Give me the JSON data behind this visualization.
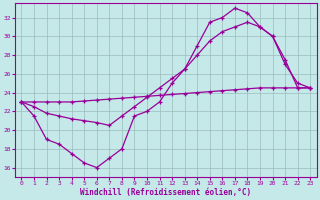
{
  "xlabel": "Windchill (Refroidissement éolien,°C)",
  "bg_color": "#c5e8e8",
  "grid_color": "#9bbcbc",
  "line_color": "#990099",
  "xlim": [
    -0.5,
    23.5
  ],
  "ylim": [
    15.0,
    33.5
  ],
  "yticks": [
    16,
    18,
    20,
    22,
    24,
    26,
    28,
    30,
    32
  ],
  "xticks": [
    0,
    1,
    2,
    3,
    4,
    5,
    6,
    7,
    8,
    9,
    10,
    11,
    12,
    13,
    14,
    15,
    16,
    17,
    18,
    19,
    20,
    21,
    22,
    23
  ],
  "line1_x": [
    0,
    1,
    2,
    3,
    4,
    5,
    6,
    7,
    8,
    9,
    10,
    11,
    12,
    13,
    14,
    15,
    16,
    17,
    18,
    19,
    20,
    21,
    22,
    23
  ],
  "line1_y": [
    23.0,
    23.0,
    23.0,
    23.0,
    23.0,
    23.1,
    23.2,
    23.3,
    23.4,
    23.5,
    23.6,
    23.7,
    23.8,
    23.9,
    24.0,
    24.1,
    24.2,
    24.3,
    24.4,
    24.5,
    24.5,
    24.5,
    24.5,
    24.5
  ],
  "line2_x": [
    0,
    1,
    2,
    3,
    4,
    5,
    6,
    7,
    8,
    9,
    10,
    11,
    12,
    13,
    14,
    15,
    16,
    17,
    18,
    19,
    20,
    21,
    22,
    23
  ],
  "line2_y": [
    23.0,
    22.5,
    21.8,
    21.5,
    21.2,
    21.0,
    20.8,
    20.5,
    21.5,
    22.5,
    23.5,
    24.5,
    25.5,
    26.5,
    28.0,
    29.5,
    30.5,
    31.0,
    31.5,
    31.0,
    30.0,
    27.0,
    25.0,
    24.5
  ],
  "line3_x": [
    0,
    1,
    2,
    3,
    4,
    5,
    6,
    7,
    8,
    9,
    10,
    11,
    12,
    13,
    14,
    15,
    16,
    17,
    18,
    19,
    20,
    21,
    22,
    23
  ],
  "line3_y": [
    23.0,
    21.5,
    19.0,
    18.5,
    17.5,
    16.5,
    16.0,
    17.0,
    18.0,
    21.5,
    22.0,
    23.0,
    25.0,
    26.5,
    29.0,
    31.5,
    32.0,
    33.0,
    32.5,
    31.0,
    30.0,
    27.5,
    24.5,
    24.5
  ]
}
